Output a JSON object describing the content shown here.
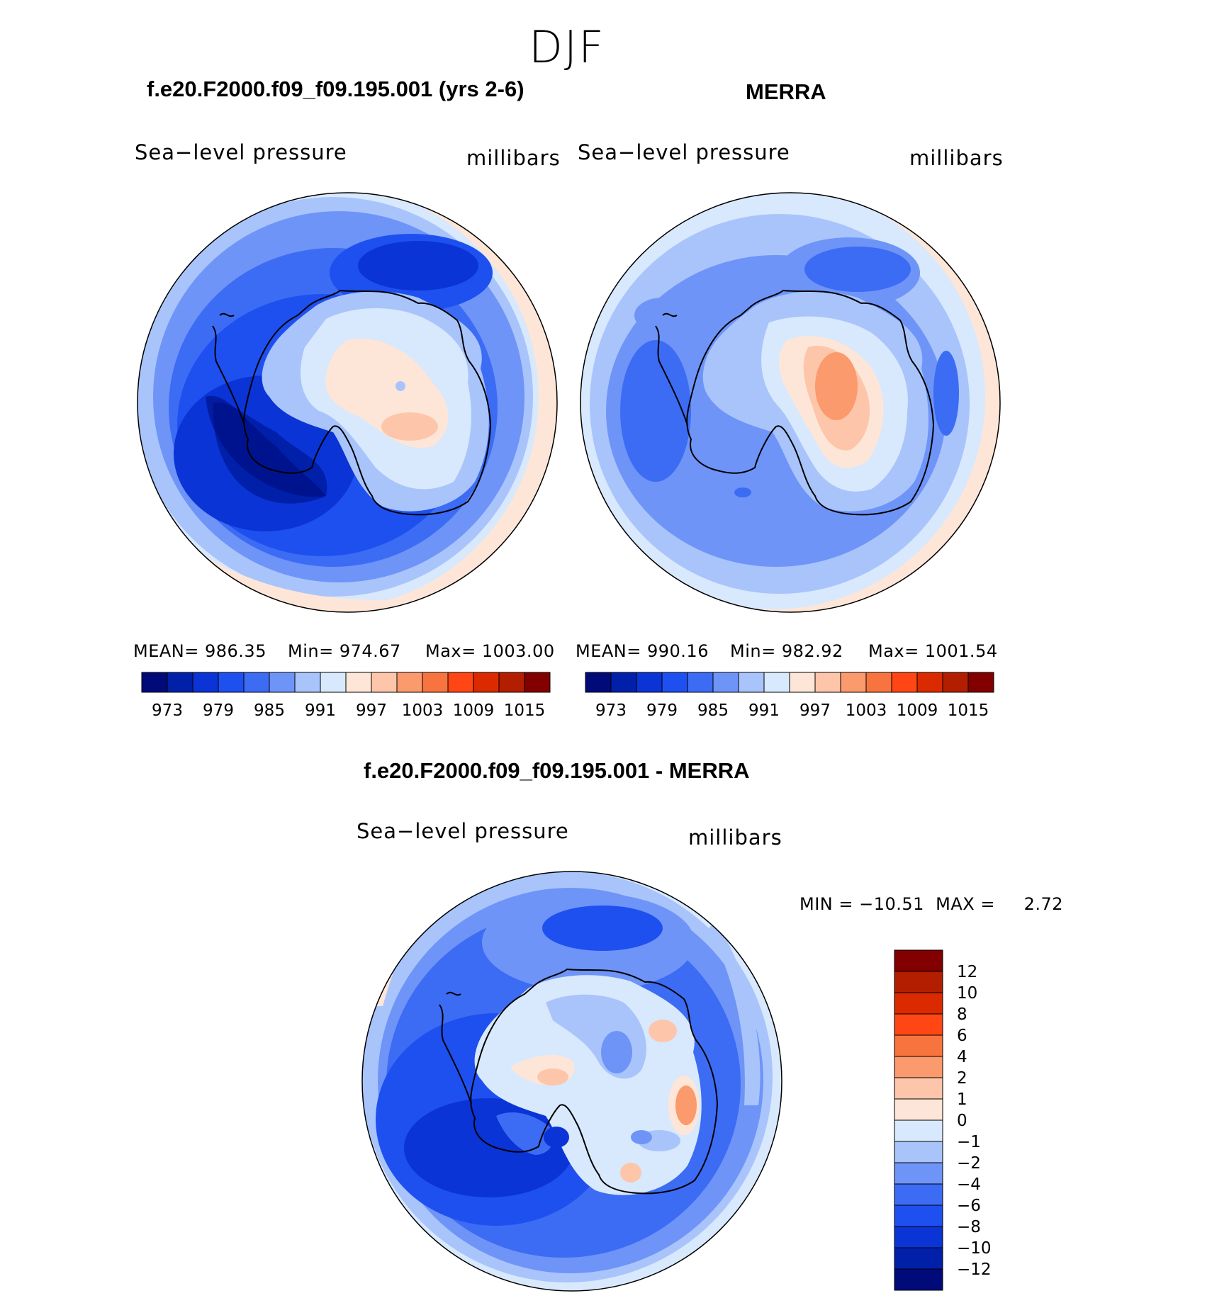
{
  "season": "DJF",
  "panels": [
    {
      "title": "f.e20.F2000.f09_f09.195.001 (yrs 2-6)",
      "field": "Sea−level pressure",
      "units": "millibars",
      "mean_label": "MEAN= 986.35",
      "min_label": "Min= 974.67",
      "max_label": "Max= 1003.00",
      "stats": {
        "mean": 986.35,
        "min": 974.67,
        "max": 1003.0
      }
    },
    {
      "title": "MERRA",
      "field": "Sea−level pressure",
      "units": "millibars",
      "mean_label": "MEAN= 990.16",
      "min_label": "Min= 982.92",
      "max_label": "Max= 1001.54",
      "stats": {
        "mean": 990.16,
        "min": 982.92,
        "max": 1001.54
      }
    }
  ],
  "difference": {
    "title": "f.e20.F2000.f09_f09.195.001 - MERRA",
    "field": "Sea−level pressure",
    "units": "millibars",
    "min_max_label": "MIN = −10.51  MAX =     2.72",
    "stats": {
      "min": -10.51,
      "max": 2.72
    }
  },
  "chart_data": [
    {
      "type": "heatmap",
      "projection": "south-polar-stereographic",
      "title": "f.e20.F2000.f09_f09.195.001 (yrs 2-6)",
      "variable": "Sea-level pressure",
      "units": "millibars",
      "colorbar_ticks": [
        "973",
        "979",
        "985",
        "991",
        "997",
        "1003",
        "1009",
        "1015"
      ],
      "contour_levels": [
        973,
        976,
        979,
        982,
        985,
        988,
        991,
        994,
        997,
        1000,
        1003,
        1006,
        1009,
        1012,
        1015
      ],
      "colors": [
        "#000a78",
        "#0020aa",
        "#0a34d6",
        "#1e50f0",
        "#3c6cf4",
        "#6e94f8",
        "#a8c4fb",
        "#d8e8fd",
        "#fde6d8",
        "#fdc6aa",
        "#fb9a6c",
        "#f8743f",
        "#ff4614",
        "#dc2a00",
        "#b41e00",
        "#820000"
      ],
      "mean": 986.35,
      "min": 974.67,
      "max": 1003.0
    },
    {
      "type": "heatmap",
      "projection": "south-polar-stereographic",
      "title": "MERRA",
      "variable": "Sea-level pressure",
      "units": "millibars",
      "colorbar_ticks": [
        "973",
        "979",
        "985",
        "991",
        "997",
        "1003",
        "1009",
        "1015"
      ],
      "contour_levels": [
        973,
        976,
        979,
        982,
        985,
        988,
        991,
        994,
        997,
        1000,
        1003,
        1006,
        1009,
        1012,
        1015
      ],
      "colors": [
        "#000a78",
        "#0020aa",
        "#0a34d6",
        "#1e50f0",
        "#3c6cf4",
        "#6e94f8",
        "#a8c4fb",
        "#d8e8fd",
        "#fde6d8",
        "#fdc6aa",
        "#fb9a6c",
        "#f8743f",
        "#ff4614",
        "#dc2a00",
        "#b41e00",
        "#820000"
      ],
      "mean": 990.16,
      "min": 982.92,
      "max": 1001.54
    },
    {
      "type": "heatmap",
      "projection": "south-polar-stereographic",
      "title": "f.e20.F2000.f09_f09.195.001 - MERRA",
      "variable": "Sea-level pressure",
      "units": "millibars",
      "colorbar_ticks": [
        "12",
        "10",
        "8",
        "6",
        "4",
        "2",
        "1",
        "0",
        "−1",
        "−2",
        "−4",
        "−6",
        "−8",
        "−10",
        "−12"
      ],
      "colors_top_to_bottom": [
        "#820000",
        "#b41e00",
        "#dc2a00",
        "#ff4614",
        "#f8743f",
        "#fb9a6c",
        "#fdc6aa",
        "#fde6d8",
        "#d8e8fd",
        "#a8c4fb",
        "#6e94f8",
        "#3c6cf4",
        "#1e50f0",
        "#0a34d6",
        "#0020aa",
        "#000a78"
      ],
      "min": -10.51,
      "max": 2.72
    }
  ]
}
